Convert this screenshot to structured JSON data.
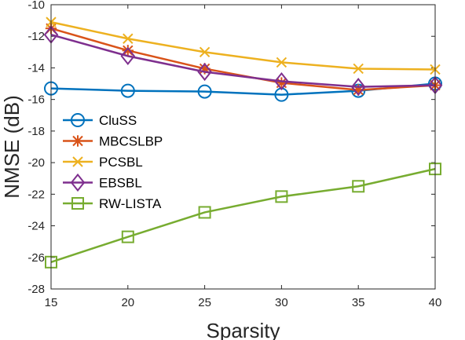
{
  "chart_data": {
    "type": "line",
    "xlabel": "Sparsity",
    "ylabel": "NMSE (dB)",
    "x": [
      15,
      20,
      25,
      30,
      35,
      40
    ],
    "xlim": [
      15,
      40
    ],
    "ylim": [
      -28,
      -10
    ],
    "xticks": [
      "15",
      "20",
      "25",
      "30",
      "35",
      "40"
    ],
    "yticks": [
      "-10",
      "-12",
      "-14",
      "-16",
      "-18",
      "-20",
      "-22",
      "-24",
      "-26",
      "-28"
    ],
    "grid": false,
    "legend_position": "center-left",
    "series": [
      {
        "name": "CluSS",
        "color": "#0072BD",
        "marker": "circle",
        "values": [
          -15.3,
          -15.45,
          -15.5,
          -15.7,
          -15.45,
          -15.0
        ]
      },
      {
        "name": "MBCSLBP",
        "color": "#D95319",
        "marker": "asterisk",
        "values": [
          -11.5,
          -12.9,
          -14.05,
          -14.95,
          -15.4,
          -15.1
        ]
      },
      {
        "name": "PCSBL",
        "color": "#EDB120",
        "marker": "x",
        "values": [
          -11.1,
          -12.15,
          -13.0,
          -13.65,
          -14.05,
          -14.1
        ]
      },
      {
        "name": "EBSBL",
        "color": "#7E2F8E",
        "marker": "diamond",
        "values": [
          -11.9,
          -13.25,
          -14.25,
          -14.85,
          -15.2,
          -15.1
        ]
      },
      {
        "name": "RW-LISTA",
        "color": "#77AC30",
        "marker": "square",
        "values": [
          -26.3,
          -24.7,
          -23.15,
          -22.15,
          -21.5,
          -20.4
        ]
      }
    ]
  }
}
